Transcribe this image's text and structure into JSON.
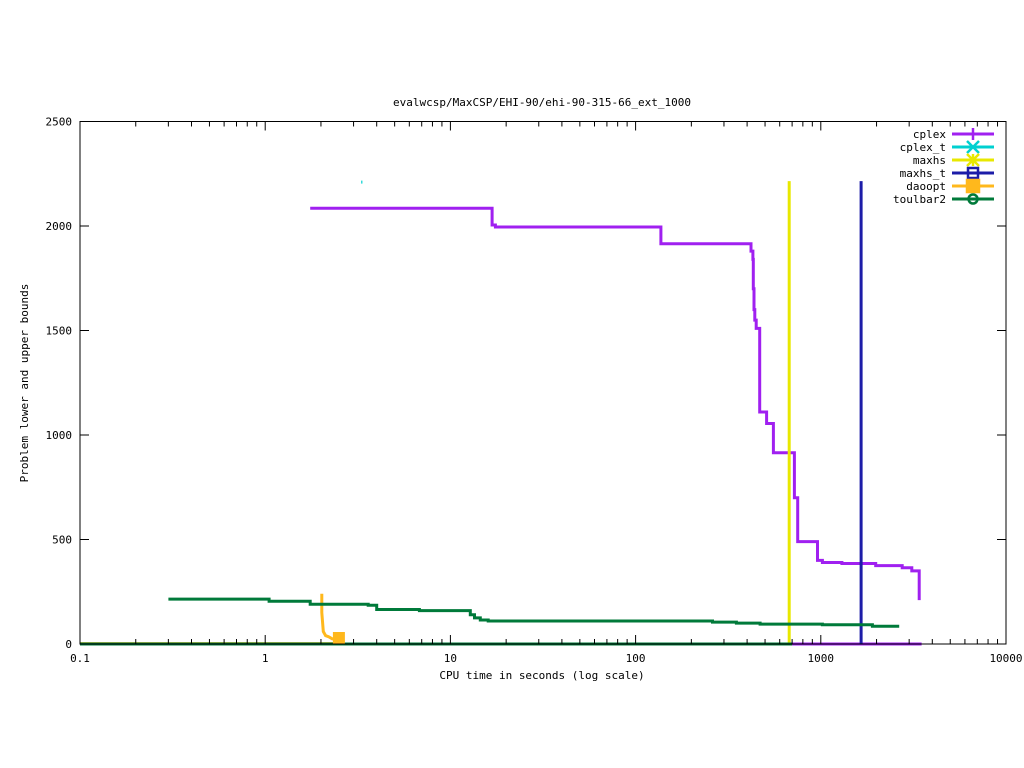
{
  "chart_data": {
    "type": "line",
    "title": "evalwcsp/MaxCSP/EHI-90/ehi-90-315-66_ext_1000",
    "xlabel": "CPU time in seconds (log scale)",
    "ylabel": "Problem lower and upper bounds",
    "x_scale": "log",
    "xlim": [
      0.1,
      10000
    ],
    "ylim": [
      0,
      2500
    ],
    "x_ticks": [
      {
        "value": 0.1,
        "label": "0.1"
      },
      {
        "value": 1,
        "label": "1"
      },
      {
        "value": 10,
        "label": "10"
      },
      {
        "value": 100,
        "label": "100"
      },
      {
        "value": 1000,
        "label": "1000"
      },
      {
        "value": 10000,
        "label": "10000"
      }
    ],
    "y_ticks": [
      {
        "value": 0,
        "label": "0"
      },
      {
        "value": 500,
        "label": "500"
      },
      {
        "value": 1000,
        "label": "1000"
      },
      {
        "value": 1500,
        "label": "1500"
      },
      {
        "value": 2000,
        "label": "2000"
      },
      {
        "value": 2500,
        "label": "2500"
      }
    ],
    "grid": false,
    "legend_position": "top-right",
    "series": [
      {
        "name": "cplex",
        "color": "#a020f0",
        "marker": "plus",
        "segments": [
          [
            [
              1.75,
              2085
            ],
            [
              16.8,
              2085
            ],
            [
              16.8,
              2005
            ],
            [
              17.5,
              2005
            ],
            [
              17.5,
              1995
            ],
            [
              137,
              1995
            ],
            [
              137,
              1915
            ],
            [
              420,
              1915
            ],
            [
              420,
              1880
            ],
            [
              430,
              1880
            ],
            [
              430,
              1840
            ],
            [
              432,
              1840
            ],
            [
              432,
              1700
            ],
            [
              436,
              1700
            ],
            [
              436,
              1600
            ],
            [
              440,
              1600
            ],
            [
              440,
              1550
            ],
            [
              448,
              1550
            ],
            [
              448,
              1510
            ],
            [
              468,
              1510
            ],
            [
              468,
              1110
            ],
            [
              510,
              1110
            ],
            [
              510,
              1055
            ],
            [
              555,
              1055
            ],
            [
              555,
              915
            ],
            [
              720,
              915
            ],
            [
              720,
              700
            ],
            [
              750,
              700
            ],
            [
              750,
              490
            ],
            [
              960,
              490
            ],
            [
              960,
              400
            ],
            [
              1020,
              400
            ],
            [
              1020,
              390
            ],
            [
              1300,
              390
            ],
            [
              1300,
              385
            ],
            [
              1980,
              385
            ],
            [
              1980,
              375
            ],
            [
              2750,
              375
            ],
            [
              2750,
              365
            ],
            [
              3100,
              365
            ],
            [
              3100,
              350
            ],
            [
              3400,
              350
            ],
            [
              3400,
              210
            ]
          ],
          [
            [
              470,
              0
            ],
            [
              3500,
              0
            ]
          ]
        ]
      },
      {
        "name": "cplex_t",
        "color": "#00d0d0",
        "marker": "cross",
        "segments": [
          [
            [
              3.3,
              2210
            ],
            [
              3.35,
              2210
            ]
          ]
        ]
      },
      {
        "name": "maxhs",
        "color": "#e8e800",
        "marker": "star",
        "segments": [
          [
            [
              675,
              0
            ],
            [
              675,
              2215
            ]
          ]
        ]
      },
      {
        "name": "maxhs_t",
        "color": "#1c1ca8",
        "marker": "square",
        "segments": [
          [
            [
              1650,
              0
            ],
            [
              1650,
              2215
            ]
          ]
        ]
      },
      {
        "name": "daoopt",
        "color": "#ffb81c",
        "marker": "filled-square",
        "segments": [
          [
            [
              0.1,
              2
            ],
            [
              2.5,
              2
            ]
          ],
          [
            [
              2.02,
              240
            ],
            [
              2.02,
              150
            ],
            [
              2.06,
              60
            ],
            [
              2.12,
              40
            ],
            [
              2.2,
              35
            ],
            [
              2.3,
              25
            ],
            [
              2.5,
              20
            ],
            [
              2.5,
              0
            ]
          ]
        ]
      },
      {
        "name": "toulbar2",
        "color": "#007a3a",
        "marker": "circle",
        "segments": [
          [
            [
              0.3,
              215
            ],
            [
              1.05,
              215
            ],
            [
              1.05,
              205
            ],
            [
              1.75,
              205
            ],
            [
              1.75,
              190
            ],
            [
              3.6,
              190
            ],
            [
              3.6,
              185
            ],
            [
              4.0,
              185
            ],
            [
              4.0,
              165
            ],
            [
              6.8,
              165
            ],
            [
              6.8,
              160
            ],
            [
              12.8,
              160
            ],
            [
              12.8,
              140
            ],
            [
              13.5,
              140
            ],
            [
              13.5,
              125
            ],
            [
              14.5,
              125
            ],
            [
              14.5,
              115
            ],
            [
              16.0,
              115
            ],
            [
              16.0,
              110
            ],
            [
              260,
              110
            ],
            [
              260,
              105
            ],
            [
              350,
              105
            ],
            [
              350,
              100
            ],
            [
              470,
              100
            ],
            [
              470,
              95
            ],
            [
              1020,
              95
            ],
            [
              1020,
              92
            ],
            [
              1900,
              92
            ],
            [
              1900,
              85
            ],
            [
              2650,
              85
            ]
          ],
          [
            [
              0.1,
              0
            ],
            [
              700,
              0
            ]
          ]
        ]
      }
    ]
  }
}
